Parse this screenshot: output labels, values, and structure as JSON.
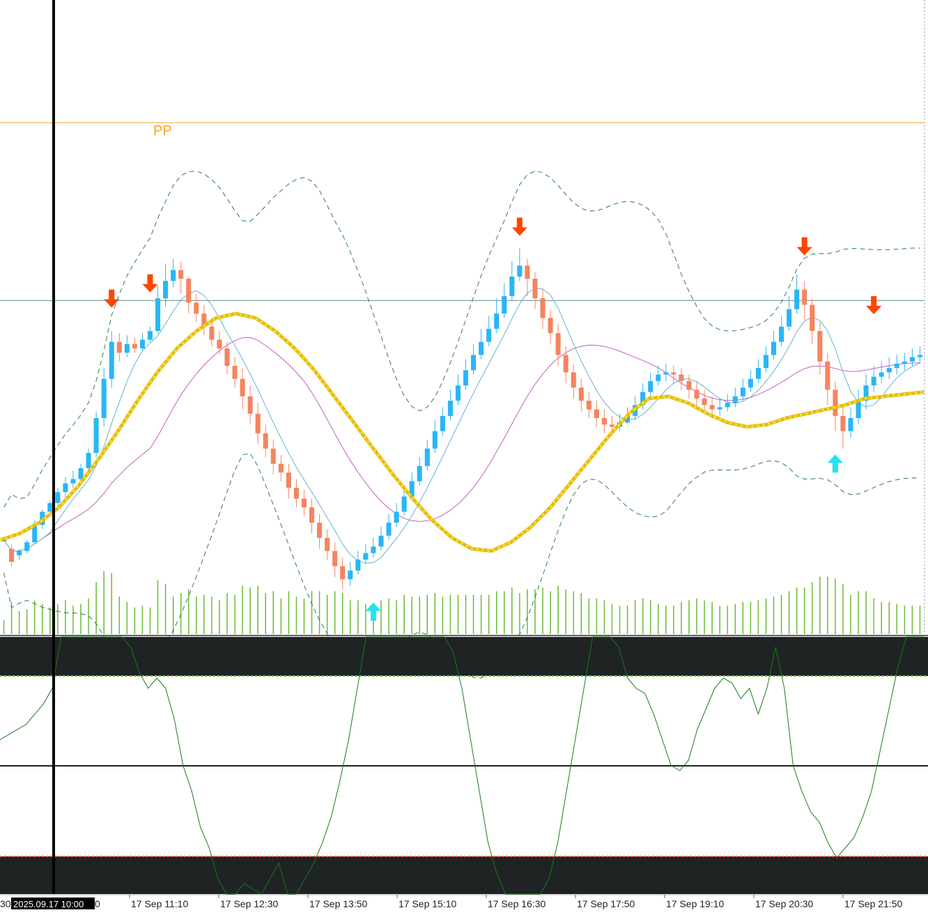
{
  "chart_data": [
    {
      "type": "candlestick",
      "panel": "price",
      "pivot_label": "PP",
      "x_ticks": [
        "17 Sep 11:10",
        "17 Sep 12:30",
        "17 Sep 13:50",
        "17 Sep 15:10",
        "17 Sep 16:30",
        "17 Sep 17:50",
        "17 Sep 19:10",
        "17 Sep 20:30",
        "17 Sep 21:50"
      ],
      "crosshair_time": "2025.09.17 10:00",
      "left_partial_tick": "30",
      "left_partial_tick_tail": "0",
      "candles": [
        [
          1.0,
          1.0,
          1.0,
          1.0
        ],
        [
          0.96,
          0.9,
          0.88,
          0.98
        ],
        [
          0.93,
          0.95,
          0.96,
          0.91
        ],
        [
          0.95,
          0.99,
          1.0,
          0.94
        ],
        [
          0.99,
          1.07,
          1.09,
          0.98
        ],
        [
          1.07,
          1.13,
          1.14,
          1.05
        ],
        [
          1.13,
          1.17,
          1.18,
          1.11
        ],
        [
          1.17,
          1.22,
          1.24,
          1.15
        ],
        [
          1.22,
          1.26,
          1.29,
          1.18
        ],
        [
          1.26,
          1.28,
          1.32,
          1.24
        ],
        [
          1.28,
          1.33,
          1.35,
          1.26
        ],
        [
          1.33,
          1.4,
          1.42,
          1.3
        ],
        [
          1.4,
          1.56,
          1.59,
          1.38
        ],
        [
          1.56,
          1.74,
          1.79,
          1.52
        ],
        [
          1.74,
          1.91,
          1.96,
          1.7
        ],
        [
          1.91,
          1.86,
          1.95,
          1.82
        ],
        [
          1.86,
          1.9,
          1.94,
          1.84
        ],
        [
          1.9,
          1.88,
          1.93,
          1.86
        ],
        [
          1.88,
          1.92,
          1.95,
          1.87
        ],
        [
          1.92,
          1.96,
          1.98,
          1.91
        ],
        [
          1.96,
          2.11,
          2.17,
          1.95
        ],
        [
          2.11,
          2.19,
          2.27,
          2.07
        ],
        [
          2.19,
          2.24,
          2.29,
          2.16
        ],
        [
          2.24,
          2.2,
          2.28,
          2.13
        ],
        [
          2.2,
          2.09,
          2.21,
          2.04
        ],
        [
          2.09,
          2.04,
          2.13,
          2.0
        ],
        [
          2.04,
          1.98,
          2.08,
          1.94
        ],
        [
          1.98,
          1.92,
          2.02,
          1.89
        ],
        [
          1.92,
          1.88,
          1.96,
          1.85
        ],
        [
          1.88,
          1.8,
          1.91,
          1.76
        ],
        [
          1.8,
          1.74,
          1.84,
          1.7
        ],
        [
          1.74,
          1.66,
          1.79,
          1.6
        ],
        [
          1.66,
          1.58,
          1.71,
          1.53
        ],
        [
          1.58,
          1.49,
          1.63,
          1.44
        ],
        [
          1.49,
          1.42,
          1.53,
          1.38
        ],
        [
          1.42,
          1.35,
          1.46,
          1.3
        ],
        [
          1.35,
          1.31,
          1.39,
          1.27
        ],
        [
          1.31,
          1.24,
          1.35,
          1.19
        ],
        [
          1.24,
          1.19,
          1.28,
          1.15
        ],
        [
          1.19,
          1.15,
          1.23,
          1.11
        ],
        [
          1.15,
          1.08,
          1.19,
          1.03
        ],
        [
          1.08,
          1.01,
          1.12,
          0.96
        ],
        [
          1.01,
          0.95,
          1.05,
          0.91
        ],
        [
          0.95,
          0.88,
          0.99,
          0.83
        ],
        [
          0.88,
          0.82,
          0.92,
          0.77
        ],
        [
          0.82,
          0.86,
          0.9,
          0.79
        ],
        [
          0.86,
          0.91,
          0.95,
          0.84
        ],
        [
          0.91,
          0.94,
          0.98,
          0.89
        ],
        [
          0.94,
          0.97,
          1.01,
          0.92
        ],
        [
          0.97,
          1.02,
          1.06,
          0.95
        ],
        [
          1.02,
          1.08,
          1.12,
          1.0
        ],
        [
          1.08,
          1.13,
          1.17,
          1.06
        ],
        [
          1.13,
          1.2,
          1.25,
          1.11
        ],
        [
          1.2,
          1.27,
          1.31,
          1.18
        ],
        [
          1.27,
          1.34,
          1.38,
          1.25
        ],
        [
          1.34,
          1.42,
          1.46,
          1.32
        ],
        [
          1.42,
          1.5,
          1.55,
          1.4
        ],
        [
          1.5,
          1.57,
          1.61,
          1.48
        ],
        [
          1.57,
          1.64,
          1.69,
          1.55
        ],
        [
          1.64,
          1.71,
          1.76,
          1.62
        ],
        [
          1.71,
          1.78,
          1.83,
          1.69
        ],
        [
          1.78,
          1.85,
          1.9,
          1.76
        ],
        [
          1.85,
          1.91,
          1.97,
          1.83
        ],
        [
          1.91,
          1.97,
          2.03,
          1.89
        ],
        [
          1.97,
          2.04,
          2.11,
          1.95
        ],
        [
          2.04,
          2.12,
          2.18,
          2.02
        ],
        [
          2.12,
          2.21,
          2.28,
          2.1
        ],
        [
          2.21,
          2.26,
          2.34,
          2.19
        ],
        [
          2.26,
          2.2,
          2.29,
          2.12
        ],
        [
          2.2,
          2.11,
          2.23,
          2.06
        ],
        [
          2.11,
          2.02,
          2.15,
          1.97
        ],
        [
          2.02,
          1.95,
          2.06,
          1.9
        ],
        [
          1.95,
          1.85,
          1.99,
          1.8
        ],
        [
          1.85,
          1.77,
          1.89,
          1.72
        ],
        [
          1.77,
          1.7,
          1.81,
          1.65
        ],
        [
          1.7,
          1.64,
          1.74,
          1.59
        ],
        [
          1.64,
          1.6,
          1.68,
          1.56
        ],
        [
          1.6,
          1.56,
          1.64,
          1.52
        ],
        [
          1.56,
          1.53,
          1.6,
          1.49
        ],
        [
          1.53,
          1.52,
          1.57,
          1.48
        ],
        [
          1.52,
          1.54,
          1.58,
          1.5
        ],
        [
          1.54,
          1.57,
          1.61,
          1.53
        ],
        [
          1.57,
          1.62,
          1.66,
          1.55
        ],
        [
          1.62,
          1.68,
          1.72,
          1.6
        ],
        [
          1.68,
          1.73,
          1.77,
          1.66
        ],
        [
          1.73,
          1.76,
          1.8,
          1.71
        ],
        [
          1.76,
          1.77,
          1.81,
          1.73
        ],
        [
          1.77,
          1.76,
          1.8,
          1.72
        ],
        [
          1.76,
          1.73,
          1.79,
          1.69
        ],
        [
          1.73,
          1.69,
          1.76,
          1.65
        ],
        [
          1.69,
          1.65,
          1.73,
          1.61
        ],
        [
          1.65,
          1.62,
          1.69,
          1.58
        ],
        [
          1.62,
          1.6,
          1.66,
          1.56
        ],
        [
          1.6,
          1.61,
          1.65,
          1.57
        ],
        [
          1.61,
          1.63,
          1.67,
          1.59
        ],
        [
          1.63,
          1.66,
          1.7,
          1.61
        ],
        [
          1.66,
          1.7,
          1.74,
          1.64
        ],
        [
          1.7,
          1.74,
          1.78,
          1.68
        ],
        [
          1.74,
          1.79,
          1.83,
          1.72
        ],
        [
          1.79,
          1.85,
          1.89,
          1.77
        ],
        [
          1.85,
          1.91,
          1.96,
          1.83
        ],
        [
          1.91,
          1.98,
          2.03,
          1.89
        ],
        [
          1.98,
          2.06,
          2.12,
          1.96
        ],
        [
          2.06,
          2.15,
          2.22,
          2.04
        ],
        [
          2.15,
          2.08,
          2.19,
          2.01
        ],
        [
          2.08,
          1.96,
          2.11,
          1.9
        ],
        [
          1.96,
          1.82,
          2.0,
          1.76
        ],
        [
          1.82,
          1.69,
          1.86,
          1.62
        ],
        [
          1.69,
          1.57,
          1.73,
          1.5
        ],
        [
          1.57,
          1.5,
          1.62,
          1.42
        ],
        [
          1.5,
          1.56,
          1.61,
          1.47
        ],
        [
          1.56,
          1.64,
          1.69,
          1.53
        ],
        [
          1.64,
          1.71,
          1.76,
          1.6
        ],
        [
          1.71,
          1.75,
          1.8,
          1.68
        ],
        [
          1.75,
          1.77,
          1.82,
          1.72
        ],
        [
          1.77,
          1.79,
          1.84,
          1.74
        ],
        [
          1.79,
          1.81,
          1.85,
          1.76
        ],
        [
          1.81,
          1.82,
          1.86,
          1.78
        ],
        [
          1.82,
          1.84,
          1.88,
          1.8
        ],
        [
          1.84,
          1.85,
          1.89,
          1.81
        ]
      ],
      "ma_values": [
        1.0,
        1.03,
        1.08,
        1.15,
        1.25,
        1.37,
        1.5,
        1.64,
        1.77,
        1.88,
        1.96,
        2.02,
        2.04,
        2.02,
        1.96,
        1.88,
        1.78,
        1.66,
        1.54,
        1.42,
        1.3,
        1.19,
        1.09,
        1.01,
        0.96,
        0.95,
        0.99,
        1.06,
        1.15,
        1.26,
        1.37,
        1.48,
        1.58,
        1.65,
        1.66,
        1.63,
        1.58,
        1.54,
        1.52,
        1.53,
        1.56,
        1.58,
        1.6,
        1.62,
        1.65,
        1.66,
        1.67,
        1.68
      ],
      "signals_down": [
        [
          14,
          2.08
        ],
        [
          19,
          2.15
        ],
        [
          67,
          2.41
        ],
        [
          104,
          2.32
        ],
        [
          113,
          2.05
        ]
      ],
      "signals_up": [
        [
          48,
          0.7
        ],
        [
          108,
          1.38
        ]
      ],
      "y_range": [
        0.6,
        3.0
      ],
      "reference_line": 2.1,
      "colors": {
        "bull": "#29b6f6",
        "bear": "#f4845f",
        "ma": "#f2b50f",
        "ma_dots": "#ccff33",
        "band": "#2e7d4f",
        "pivot": "#f5a623",
        "volume": "#66bb33",
        "signal_down": "#ff4500",
        "signal_up": "#22e3f0"
      }
    },
    {
      "type": "line",
      "panel": "oscillator",
      "y_range": [
        0,
        100
      ],
      "levels": [
        80,
        50,
        20
      ],
      "values": [
        60,
        62,
        64,
        66,
        70,
        74,
        80,
        100,
        100,
        100,
        100,
        100,
        100,
        100,
        100,
        96,
        86,
        80,
        84,
        80,
        68,
        50,
        40,
        26,
        18,
        6,
        0,
        0,
        4,
        2,
        0,
        6,
        12,
        0,
        0,
        6,
        12,
        20,
        30,
        44,
        60,
        80,
        100,
        100,
        100,
        100,
        100,
        100,
        100,
        100,
        100,
        100,
        94,
        80,
        60,
        40,
        20,
        8,
        0,
        0,
        0,
        0,
        0,
        6,
        20,
        40,
        60,
        80,
        100,
        100,
        100,
        96,
        84,
        80,
        78,
        70,
        60,
        50,
        48,
        52,
        64,
        72,
        80,
        84,
        82,
        76,
        80,
        70,
        80,
        96,
        80,
        50,
        40,
        32,
        28,
        20,
        14,
        18,
        22,
        30,
        40,
        56,
        72,
        88,
        100,
        100,
        100
      ]
    }
  ]
}
